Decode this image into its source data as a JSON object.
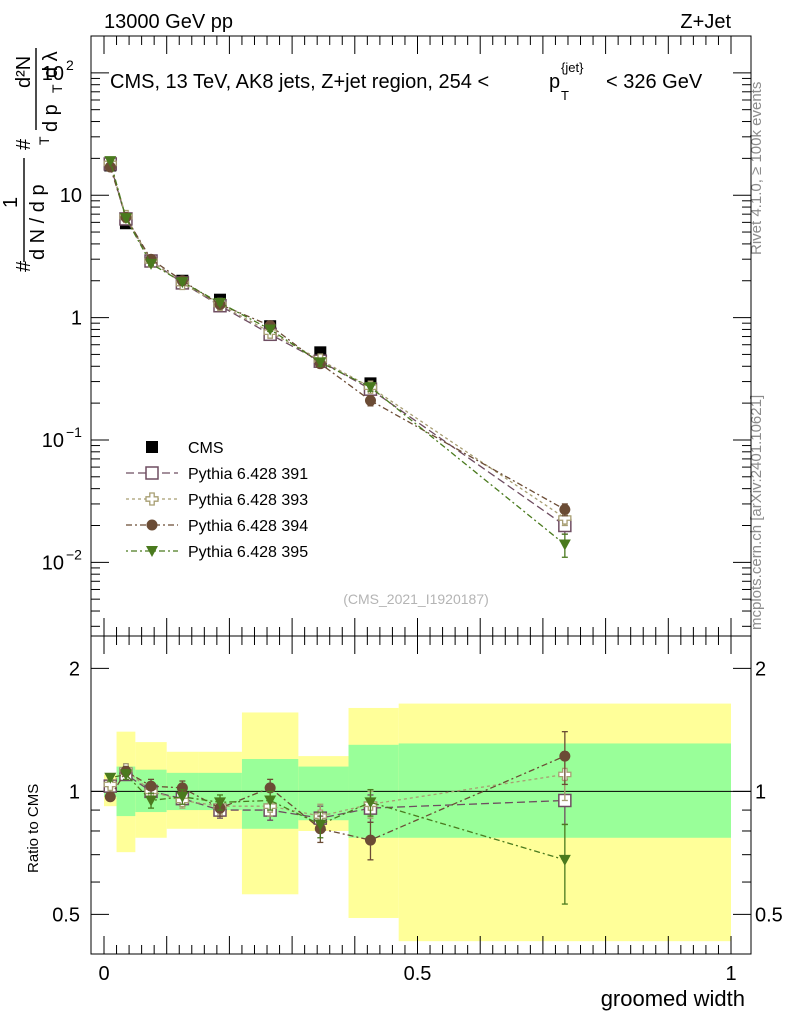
{
  "header": {
    "left": "13000 GeV pp",
    "right": "Z+Jet"
  },
  "side_labels": {
    "rivet": "Rivet 4.1.0, ≥ 100k events",
    "mcplots": "mcplots.cern.ch [arXiv:2401.10621]"
  },
  "chart_data": [
    {
      "type": "scatter",
      "panel": "main",
      "title": "CMS, 13 TeV, AK8 jets, Z+jet region, 254 <",
      "title_suffix": "< 326 GeV",
      "title_pt": "p",
      "title_pt_sup": "{jet}",
      "title_pt_sub": "T",
      "watermark": "(CMS_2021_I1920187)",
      "ylabel": "1/N dN/dpT d²N/dpT dλ",
      "ylabel_parts": {
        "hash": "#",
        "one": "1",
        "dN": "d N / d p",
        "T": "T",
        "d2N": "d²N",
        "dpT": "d p",
        "dlambda": "d λ"
      },
      "yscale": "log",
      "ylim": [
        0.0025,
        200
      ],
      "xlim": [
        -0.02,
        1.0
      ],
      "y_ticks": [
        {
          "v": 100,
          "base": "10",
          "exp": "2"
        },
        {
          "v": 10,
          "base": "10",
          "exp": ""
        },
        {
          "v": 1,
          "base": "1",
          "exp": ""
        },
        {
          "v": 0.1,
          "base": "10",
          "exp": "−1"
        },
        {
          "v": 0.01,
          "base": "10",
          "exp": "−2"
        }
      ],
      "x": [
        0.01,
        0.035,
        0.075,
        0.125,
        0.185,
        0.265,
        0.345,
        0.425,
        0.735
      ],
      "series": [
        {
          "name": "CMS",
          "marker": "square-filled",
          "color": "#000000",
          "values": [
            17.5,
            5.9,
            2.9,
            2.0,
            1.4,
            0.85,
            0.52,
            0.29,
            0.021
          ],
          "errors": [
            0.4,
            0.2,
            0.1,
            0.06,
            0.05,
            0.04,
            0.03,
            0.02,
            0.003
          ]
        },
        {
          "name": "Pythia 6.428 391",
          "marker": "square-open",
          "color": "#6e4d61",
          "values": [
            18.0,
            6.4,
            2.9,
            1.92,
            1.25,
            0.73,
            0.44,
            0.26,
            0.02
          ],
          "errors": [
            0.3,
            0.2,
            0.1,
            0.06,
            0.05,
            0.03,
            0.03,
            0.02,
            0.003
          ]
        },
        {
          "name": "Pythia 6.428 393",
          "marker": "cross-open",
          "color": "#a79e72",
          "values": [
            18.2,
            6.7,
            2.9,
            1.9,
            1.28,
            0.76,
            0.45,
            0.27,
            0.023
          ],
          "errors": [
            0.3,
            0.2,
            0.1,
            0.06,
            0.05,
            0.03,
            0.03,
            0.02,
            0.003
          ]
        },
        {
          "name": "Pythia 6.428 394",
          "marker": "circle-filled",
          "color": "#6b4c35",
          "values": [
            17.0,
            6.6,
            3.0,
            2.0,
            1.28,
            0.86,
            0.42,
            0.21,
            0.027
          ],
          "errors": [
            0.3,
            0.2,
            0.1,
            0.06,
            0.05,
            0.04,
            0.03,
            0.02,
            0.003
          ]
        },
        {
          "name": "Pythia 6.428 395",
          "marker": "triangle-down-filled",
          "color": "#4a7a1e",
          "values": [
            19.0,
            6.5,
            2.75,
            1.95,
            1.32,
            0.8,
            0.43,
            0.27,
            0.014
          ],
          "errors": [
            0.3,
            0.2,
            0.1,
            0.06,
            0.05,
            0.03,
            0.03,
            0.02,
            0.003
          ]
        }
      ]
    },
    {
      "type": "scatter",
      "panel": "ratio",
      "ylabel": "Ratio to CMS",
      "xlabel": "groomed width",
      "yscale": "log",
      "ylim": [
        0.4,
        2.4
      ],
      "xlim": [
        -0.02,
        1.0
      ],
      "y_ticks": [
        {
          "v": 0.5,
          "label": "0.5"
        },
        {
          "v": 1,
          "label": "1"
        },
        {
          "v": 2,
          "label": "2"
        }
      ],
      "x_ticks": [
        {
          "v": 0,
          "label": "0"
        },
        {
          "v": 0.5,
          "label": "0.5"
        },
        {
          "v": 1,
          "label": "1"
        }
      ],
      "bands": [
        {
          "x0": 0.0,
          "x1": 0.02,
          "g_lo": 0.97,
          "g_hi": 1.06,
          "y_lo": 0.92,
          "y_hi": 1.1
        },
        {
          "x0": 0.02,
          "x1": 0.05,
          "g_lo": 0.87,
          "g_hi": 1.15,
          "y_lo": 0.71,
          "y_hi": 1.4
        },
        {
          "x0": 0.05,
          "x1": 0.1,
          "g_lo": 0.89,
          "g_hi": 1.13,
          "y_lo": 0.77,
          "y_hi": 1.32
        },
        {
          "x0": 0.1,
          "x1": 0.15,
          "g_lo": 0.9,
          "g_hi": 1.11,
          "y_lo": 0.81,
          "y_hi": 1.25
        },
        {
          "x0": 0.15,
          "x1": 0.22,
          "g_lo": 0.9,
          "g_hi": 1.11,
          "y_lo": 0.81,
          "y_hi": 1.25
        },
        {
          "x0": 0.22,
          "x1": 0.31,
          "g_lo": 0.81,
          "g_hi": 1.2,
          "y_lo": 0.56,
          "y_hi": 1.56
        },
        {
          "x0": 0.31,
          "x1": 0.39,
          "g_lo": 0.85,
          "g_hi": 1.15,
          "y_lo": 0.8,
          "y_hi": 1.22
        },
        {
          "x0": 0.39,
          "x1": 0.47,
          "g_lo": 0.77,
          "g_hi": 1.3,
          "y_lo": 0.49,
          "y_hi": 1.6
        },
        {
          "x0": 0.47,
          "x1": 1.0,
          "g_lo": 0.77,
          "g_hi": 1.31,
          "y_lo": 0.43,
          "y_hi": 1.64
        }
      ],
      "x": [
        0.01,
        0.035,
        0.075,
        0.125,
        0.185,
        0.265,
        0.345,
        0.425,
        0.735
      ],
      "series": [
        {
          "name": "Pythia 6.428 391",
          "marker": "square-open",
          "color": "#6e4d61",
          "values": [
            1.03,
            1.1,
            1.0,
            0.96,
            0.9,
            0.9,
            0.86,
            0.91,
            0.95
          ],
          "errors": [
            0.02,
            0.03,
            0.04,
            0.04,
            0.04,
            0.05,
            0.06,
            0.07,
            0.12
          ]
        },
        {
          "name": "Pythia 6.428 393",
          "marker": "cross-open",
          "color": "#a79e72",
          "values": [
            1.04,
            1.13,
            1.0,
            0.95,
            0.92,
            0.92,
            0.87,
            0.93,
            1.1
          ],
          "errors": [
            0.02,
            0.03,
            0.04,
            0.04,
            0.04,
            0.05,
            0.06,
            0.07,
            0.15
          ]
        },
        {
          "name": "Pythia 6.428 394",
          "marker": "circle-filled",
          "color": "#6b4c35",
          "values": [
            0.97,
            1.12,
            1.03,
            1.02,
            0.91,
            1.02,
            0.81,
            0.76,
            1.22
          ],
          "errors": [
            0.02,
            0.03,
            0.04,
            0.04,
            0.04,
            0.05,
            0.06,
            0.08,
            0.18
          ]
        },
        {
          "name": "Pythia 6.428 395",
          "marker": "triangle-down-filled",
          "color": "#4a7a1e",
          "values": [
            1.08,
            1.1,
            0.95,
            0.97,
            0.94,
            0.95,
            0.83,
            0.94,
            0.68
          ],
          "errors": [
            0.02,
            0.03,
            0.04,
            0.04,
            0.04,
            0.05,
            0.06,
            0.07,
            0.15
          ]
        }
      ]
    }
  ],
  "colors": {
    "band_green": "#99ff99",
    "band_yellow": "#ffff99"
  }
}
